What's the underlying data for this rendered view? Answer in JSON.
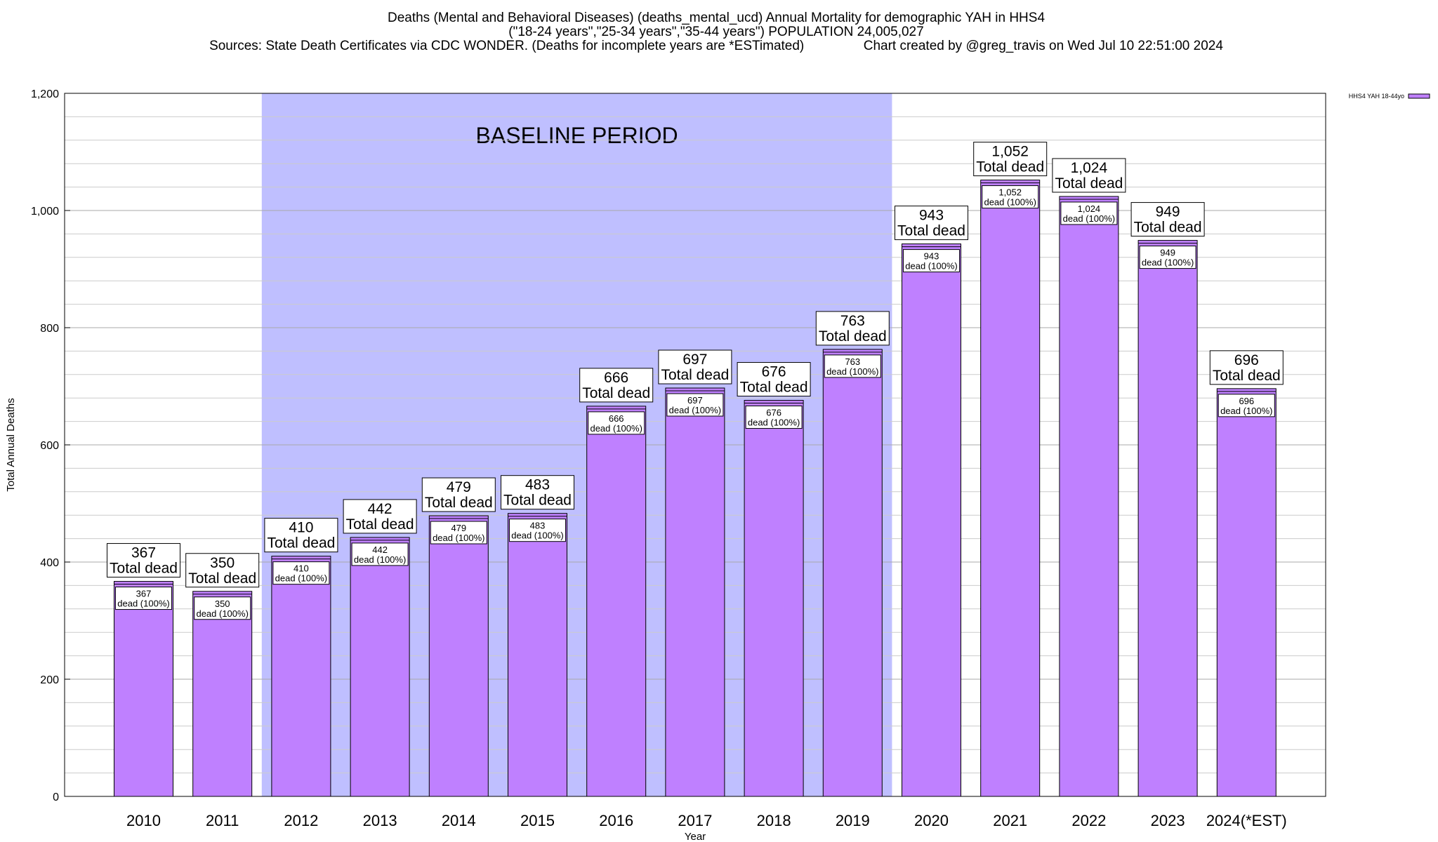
{
  "chart_data": {
    "type": "bar",
    "title_lines": [
      "Deaths (Mental and Behavioral Diseases) (deaths_mental_ucd) Annual Mortality for demographic YAH in HHS4",
      "(\"18-24 years\",\"25-34 years\",\"35-44 years\") POPULATION 24,005,027",
      "Sources: State Death Certificates via CDC WONDER. (Deaths for incomplete years are *ESTimated)                Chart created by @greg_travis on Wed Jul 10 22:51:00 2024"
    ],
    "xlabel": "Year",
    "ylabel": "Total Annual Deaths",
    "ylim": [
      0,
      1200
    ],
    "ytick_values": [
      0,
      200,
      400,
      600,
      800,
      1000,
      1200
    ],
    "ytick_labels": [
      "0",
      "200",
      "400",
      "600",
      "800",
      "1,000",
      "1,200"
    ],
    "grid": true,
    "legend_position": "top-right",
    "series": [
      {
        "name": "HHS4 YAH 18-44yo",
        "color": "#bf80ff",
        "values": [
          367,
          350,
          410,
          442,
          479,
          483,
          666,
          697,
          676,
          763,
          943,
          1052,
          1024,
          949,
          696
        ]
      }
    ],
    "categories": [
      "2010",
      "2011",
      "2012",
      "2013",
      "2014",
      "2015",
      "2016",
      "2017",
      "2018",
      "2019",
      "2020",
      "2021",
      "2022",
      "2023",
      "2024(*EST)"
    ],
    "value_labels": [
      "367",
      "350",
      "410",
      "442",
      "479",
      "483",
      "666",
      "697",
      "676",
      "763",
      "943",
      "1,052",
      "1,024",
      "949",
      "696"
    ],
    "total_label_suffix": "Total dead",
    "inner_label_suffix": "dead (100%)",
    "baseline_period": {
      "label": "BASELINE PERIOD",
      "start_category": "2012",
      "end_category": "2019",
      "color": "#bfbfff"
    }
  }
}
